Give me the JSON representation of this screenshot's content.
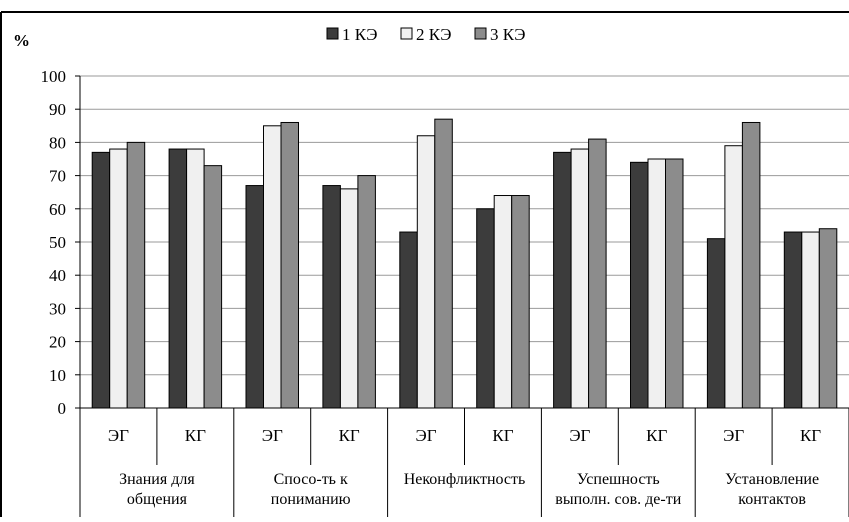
{
  "chart_data": {
    "type": "bar",
    "ylabel": "%",
    "ylim": [
      0,
      100
    ],
    "yticks": [
      "0",
      "10",
      "20",
      "30",
      "40",
      "50",
      "60",
      "70",
      "80",
      "90",
      "100"
    ],
    "grid": true,
    "legend_position": "top-center",
    "groups": [
      {
        "label": "Знания для общения",
        "label_lines": [
          "Знания для",
          "общения"
        ]
      },
      {
        "label": "Спосо-ть к пониманию",
        "label_lines": [
          "Спосо-ть к",
          "пониманию"
        ]
      },
      {
        "label": "Неконфликтность",
        "label_lines": [
          "Неконфликтность"
        ]
      },
      {
        "label": "Успешность выполн. сов. де-ти",
        "label_lines": [
          "Успешность",
          "выполн. сов. де-ти"
        ]
      },
      {
        "label": "Установление контактов",
        "label_lines": [
          "Установление",
          "контактов"
        ]
      }
    ],
    "categories": [
      "ЭГ",
      "КГ",
      "ЭГ",
      "КГ",
      "ЭГ",
      "КГ",
      "ЭГ",
      "КГ",
      "ЭГ",
      "КГ"
    ],
    "series": [
      {
        "name": "1 КЭ",
        "color": "#3c3c3c",
        "values": [
          77,
          78,
          67,
          67,
          53,
          60,
          77,
          74,
          51,
          53
        ]
      },
      {
        "name": "2 КЭ",
        "color": "#f0f0f0",
        "values": [
          78,
          78,
          85,
          66,
          82,
          64,
          78,
          75,
          79,
          53
        ]
      },
      {
        "name": "3 КЭ",
        "color": "#8c8c8c",
        "values": [
          80,
          73,
          86,
          70,
          87,
          64,
          81,
          75,
          86,
          54
        ]
      }
    ]
  }
}
